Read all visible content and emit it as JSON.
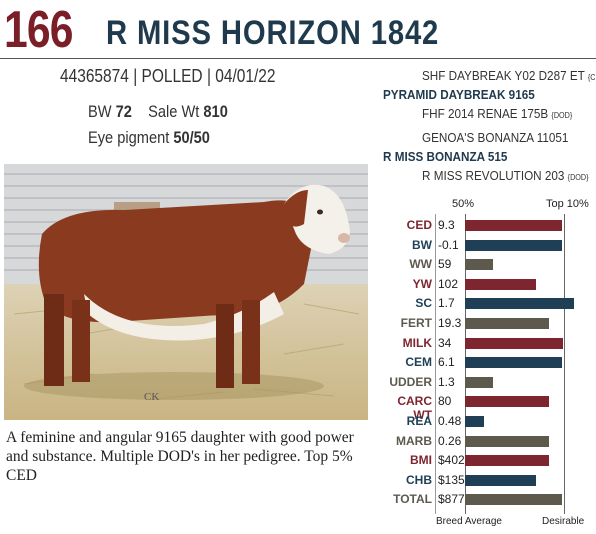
{
  "lot_number": "166",
  "animal_name": "R MISS HORIZON 1842",
  "registration": "44365874",
  "polled": "POLLED",
  "birth_date": "04/01/22",
  "bw_label": "BW",
  "bw_value": "72",
  "sale_wt_label": "Sale Wt",
  "sale_wt_value": "810",
  "eye_label": "Eye pigment",
  "eye_value": "50/50",
  "pedigree": {
    "sire_sire": "SHF DAYBREAK Y02 D287 ET",
    "sire_sire_tag": "{CHB}",
    "sire": "PYRAMID DAYBREAK 9165",
    "sire_dam": "FHF 2014 RENAE 175B",
    "sire_dam_tag": "{DOD}",
    "dam_sire": "GENOA'S BONANZA 11051",
    "dam": "R MISS BONANZA 515",
    "dam_dam": "R MISS REVOLUTION 203",
    "dam_dam_tag": "{DOD}"
  },
  "description": "A feminine and angular 9165 daughter with good power and substance. Multiple DOD's in her pedigree. Top 5% CED",
  "photo_mark": "CK",
  "colors": {
    "maroon": "#7d2630",
    "navy": "#1e3f56",
    "olive": "#5d5a4d"
  },
  "chart_data": {
    "type": "bar",
    "orientation": "horizontal",
    "header_left": "50%",
    "header_right": "Top 10%",
    "footer_left": "Breed Average",
    "footer_right": "Desirable",
    "traits": [
      {
        "label": "CED",
        "value": "9.3",
        "level": 0.82,
        "color": "maroon"
      },
      {
        "label": "BW",
        "value": "-0.1",
        "level": 0.82,
        "color": "navy"
      },
      {
        "label": "WW",
        "value": "59",
        "level": 0.24,
        "color": "olive"
      },
      {
        "label": "YW",
        "value": "102",
        "level": 0.6,
        "color": "maroon"
      },
      {
        "label": "SC",
        "value": "1.7",
        "level": 0.92,
        "color": "navy"
      },
      {
        "label": "FERT",
        "value": "19.3",
        "level": 0.71,
        "color": "olive"
      },
      {
        "label": "MILK",
        "value": "34",
        "level": 0.83,
        "color": "maroon"
      },
      {
        "label": "CEM",
        "value": "6.1",
        "level": 0.82,
        "color": "navy"
      },
      {
        "label": "UDDER",
        "value": "1.3",
        "level": 0.24,
        "color": "olive"
      },
      {
        "label": "CARC WT",
        "value": "80",
        "level": 0.71,
        "color": "maroon"
      },
      {
        "label": "REA",
        "value": "0.48",
        "level": 0.16,
        "color": "navy"
      },
      {
        "label": "MARB",
        "value": "0.26",
        "level": 0.71,
        "color": "olive"
      },
      {
        "label": "BMI",
        "value": "$402",
        "level": 0.71,
        "color": "maroon"
      },
      {
        "label": "CHB",
        "value": "$135",
        "level": 0.6,
        "color": "navy"
      },
      {
        "label": "TOTAL",
        "value": "$877",
        "level": 0.82,
        "color": "olive"
      }
    ]
  }
}
